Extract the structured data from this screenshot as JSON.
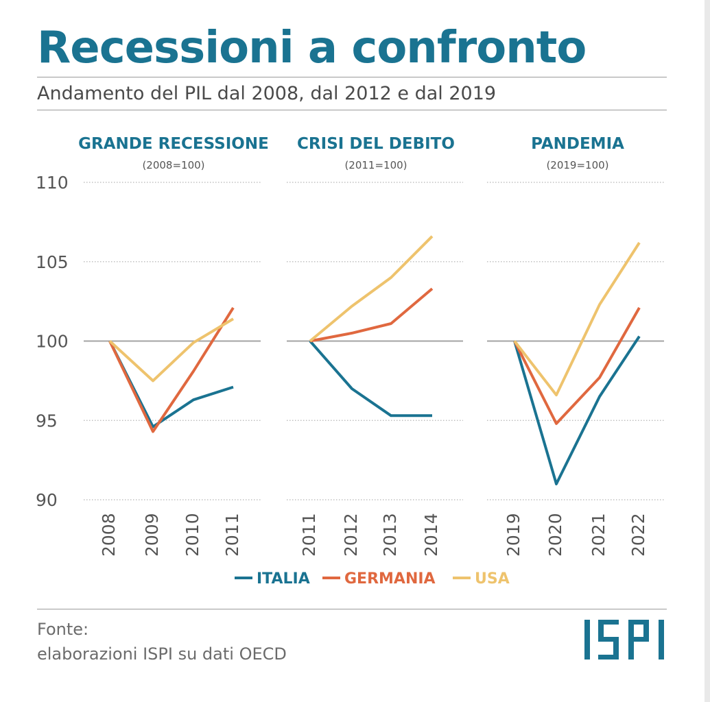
{
  "title": "Recessioni a confronto",
  "subtitle": "Andamento del PIL dal 2008, dal 2012 e dal 2019",
  "source": {
    "line1": "Fonte:",
    "line2": "elaborazioni ISPI su dati OECD"
  },
  "logo": {
    "text": "ISPI"
  },
  "colors": {
    "accent": "#1a7391",
    "italia": "#1a7391",
    "germania": "#e0683f",
    "usa": "#eec36d",
    "baseline": "#a3a3a3",
    "grid": "#b5b5b5"
  },
  "chart_data": [
    {
      "type": "line",
      "title": "GRANDE RECESSIONE",
      "subtitle": "(2008=100)",
      "x": [
        "2008",
        "2009",
        "2010",
        "2011"
      ],
      "ylim": [
        90,
        110
      ],
      "yticks": [
        90,
        95,
        100,
        105,
        110
      ],
      "baseline": 100,
      "grid": true,
      "series": [
        {
          "name": "ITALIA",
          "values": [
            100,
            94.6,
            96.3,
            97.1
          ]
        },
        {
          "name": "GERMANIA",
          "values": [
            100,
            94.3,
            98.1,
            102.1
          ]
        },
        {
          "name": "USA",
          "values": [
            100,
            97.5,
            99.9,
            101.4
          ]
        }
      ]
    },
    {
      "type": "line",
      "title": "CRISI DEL DEBITO",
      "subtitle": "(2011=100)",
      "x": [
        "2011",
        "2012",
        "2013",
        "2014"
      ],
      "ylim": [
        90,
        110
      ],
      "baseline": 100,
      "grid": true,
      "series": [
        {
          "name": "ITALIA",
          "values": [
            100,
            97.0,
            95.3,
            95.3
          ]
        },
        {
          "name": "GERMANIA",
          "values": [
            100,
            100.5,
            101.1,
            103.3
          ]
        },
        {
          "name": "USA",
          "values": [
            100,
            102.2,
            104.0,
            106.6
          ]
        }
      ]
    },
    {
      "type": "line",
      "title": "PANDEMIA",
      "subtitle": "(2019=100)",
      "x": [
        "2019",
        "2020",
        "2021",
        "2022"
      ],
      "ylim": [
        90,
        110
      ],
      "baseline": 100,
      "grid": true,
      "series": [
        {
          "name": "ITALIA",
          "values": [
            100,
            91.0,
            96.5,
            100.3
          ]
        },
        {
          "name": "GERMANIA",
          "values": [
            100,
            94.8,
            97.7,
            102.1
          ]
        },
        {
          "name": "USA",
          "values": [
            100,
            96.6,
            102.3,
            106.2
          ]
        }
      ]
    }
  ],
  "legend": [
    {
      "label": "ITALIA",
      "color": "#1a7391"
    },
    {
      "label": "GERMANIA",
      "color": "#e0683f"
    },
    {
      "label": "USA",
      "color": "#eec36d"
    }
  ]
}
